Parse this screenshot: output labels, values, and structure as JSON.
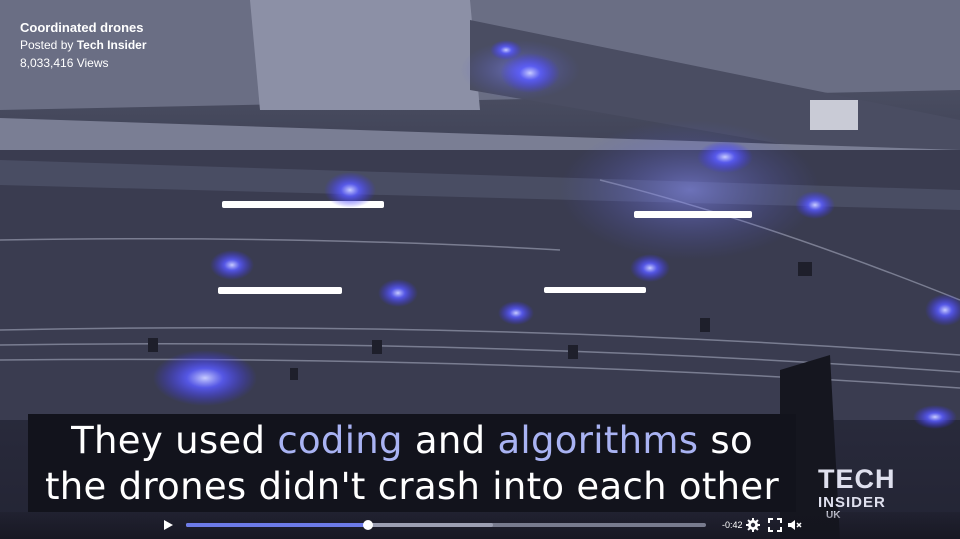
{
  "video": {
    "title": "Coordinated drones",
    "posted_prefix": "Posted by",
    "author": "Tech Insider",
    "views": "8,033,416 Views"
  },
  "caption": {
    "line1_a": "They used",
    "line1_b": "coding",
    "line1_c": "and",
    "line1_d": "algorithms",
    "line1_e": "so",
    "line2": "the drones didn't crash into each other",
    "highlight_color": "#a9b3f3"
  },
  "logo": {
    "line1": "TECH",
    "line2": "INSIDER",
    "line3": "UK"
  },
  "player": {
    "time_remaining": "-0:42",
    "progress_fraction": 0.35,
    "buffered_fraction": 0.59,
    "accent_color": "#6d7be8",
    "icons": [
      "play-icon",
      "gear-icon",
      "fullscreen-icon",
      "volume-muted-icon"
    ]
  }
}
